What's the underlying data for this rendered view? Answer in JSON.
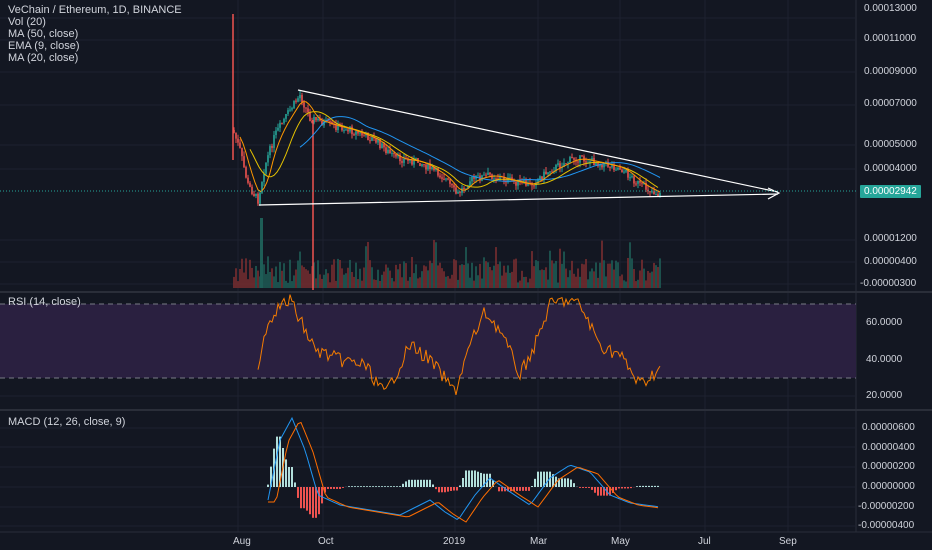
{
  "legend": {
    "title": "VeChain / Ethereum, 1D, BINANCE",
    "indicators": [
      "Vol (20)",
      "MA (50, close)",
      "EMA (9, close)",
      "MA (20, close)"
    ]
  },
  "rsi": {
    "label": "RSI (14, close)",
    "ticks": [
      "60.0000",
      "40.0000",
      "20.0000"
    ],
    "band_color": "#2a2040"
  },
  "macd": {
    "label": "MACD (12, 26, close, 9)",
    "ticks": [
      "0.00000600",
      "0.00000400",
      "0.00000200",
      "0.00000000",
      "-0.00000200",
      "-0.00000400"
    ]
  },
  "price_axis": {
    "ticks": [
      "0.00013000",
      "0.00011000",
      "0.00009000",
      "0.00007000",
      "0.00005000",
      "0.00004000",
      "0.00001200",
      "0.00000400",
      "-0.00000300"
    ],
    "current_price": "0.00002942",
    "current_color": "#26a69a"
  },
  "time_axis": {
    "labels": [
      "Aug",
      "Oct",
      "2019",
      "Mar",
      "May",
      "Jul",
      "Sep"
    ]
  },
  "colors": {
    "up": "#26a69a",
    "down": "#ef5350",
    "ma50": "#2196f3",
    "ema9": "#ff9800",
    "ma20": "#e6c300",
    "rsi": "#f57c00",
    "macd": "#2196f3",
    "signal": "#ff6d00",
    "trendline": "#ffffff"
  }
}
